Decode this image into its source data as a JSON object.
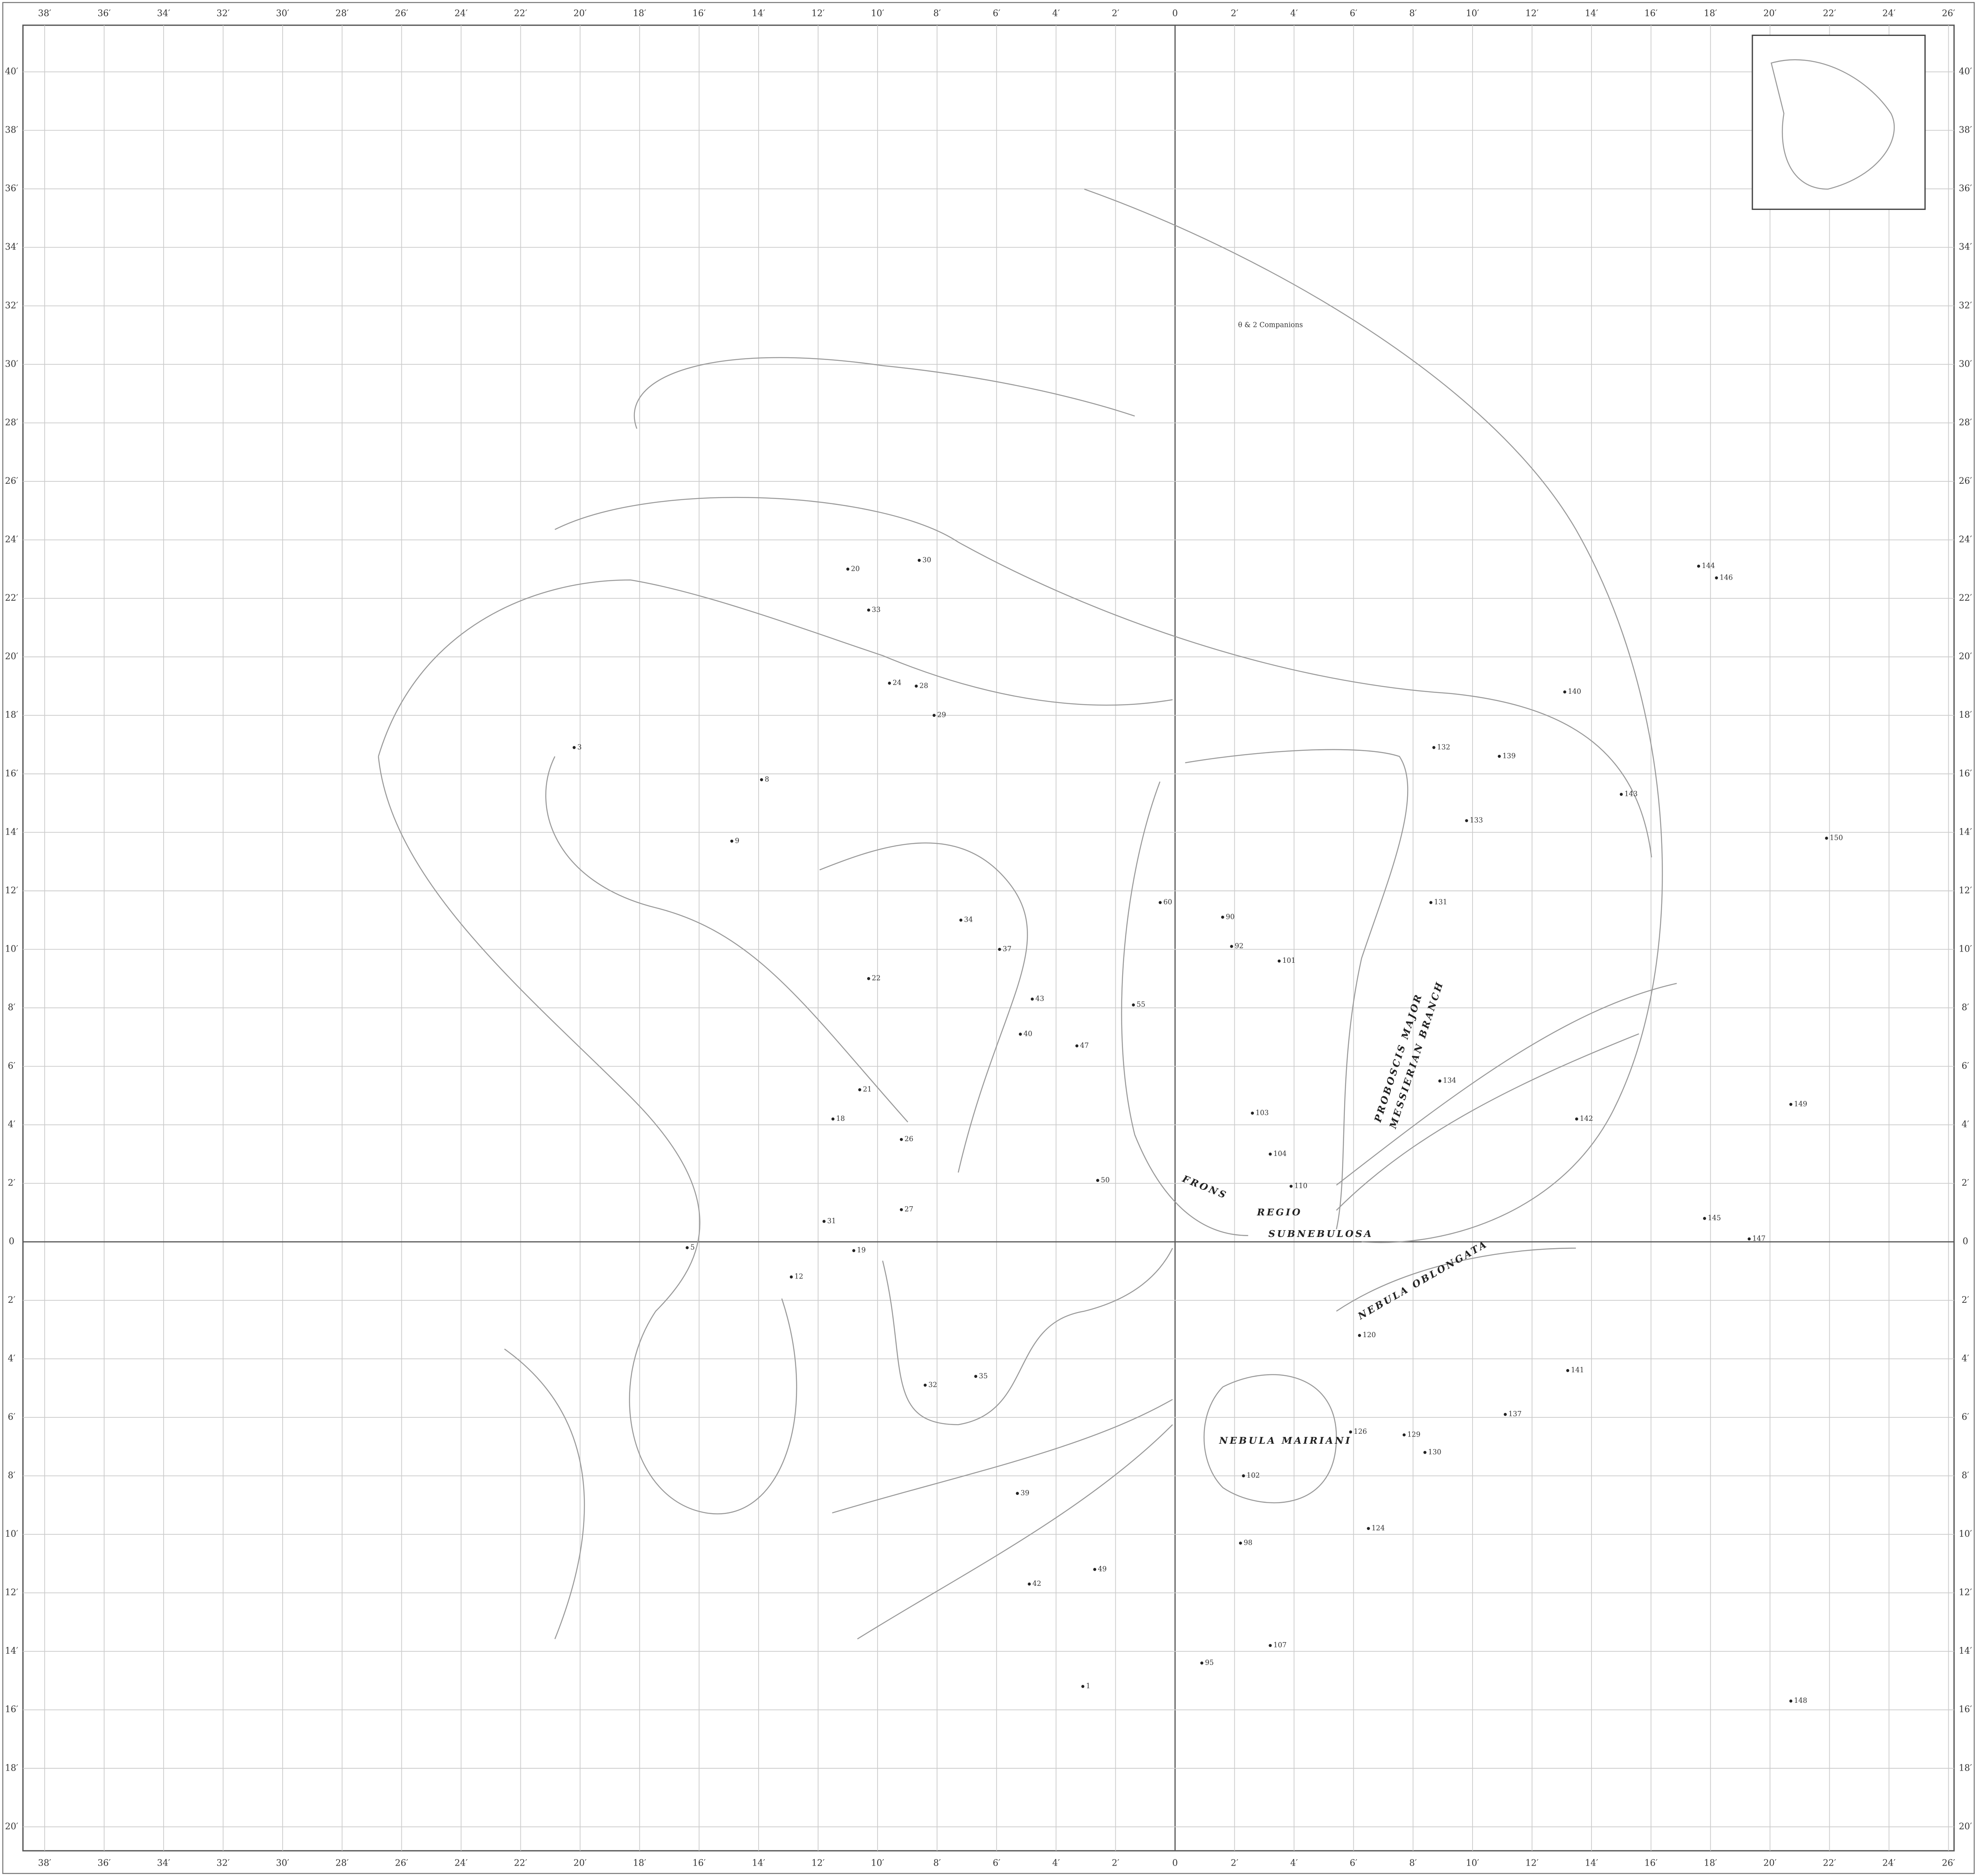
{
  "map": {
    "xticks": [
      {
        "value": -38,
        "label": "38′"
      },
      {
        "value": -36,
        "label": "36′"
      },
      {
        "value": -34,
        "label": "34′"
      },
      {
        "value": -32,
        "label": "32′"
      },
      {
        "value": -30,
        "label": "30′"
      },
      {
        "value": -28,
        "label": "28′"
      },
      {
        "value": -26,
        "label": "26′"
      },
      {
        "value": -24,
        "label": "24′"
      },
      {
        "value": -22,
        "label": "22′"
      },
      {
        "value": -20,
        "label": "20′"
      },
      {
        "value": -18,
        "label": "18′"
      },
      {
        "value": -16,
        "label": "16′"
      },
      {
        "value": -14,
        "label": "14′"
      },
      {
        "value": -12,
        "label": "12′"
      },
      {
        "value": -10,
        "label": "10′"
      },
      {
        "value": -8,
        "label": "8′"
      },
      {
        "value": -6,
        "label": "6′"
      },
      {
        "value": -4,
        "label": "4′"
      },
      {
        "value": -2,
        "label": "2′"
      },
      0,
      {
        "value": 2,
        "label": "2′"
      },
      {
        "value": 4,
        "label": "4′"
      },
      {
        "value": 6,
        "label": "6′"
      },
      {
        "value": 8,
        "label": "8′"
      },
      {
        "value": 10,
        "label": "10′"
      },
      {
        "value": 12,
        "label": "12′"
      },
      {
        "value": 14,
        "label": "14′"
      },
      {
        "value": 16,
        "label": "16′"
      },
      {
        "value": 18,
        "label": "18′"
      },
      {
        "value": 20,
        "label": "20′"
      },
      {
        "value": 22,
        "label": "22′"
      },
      {
        "value": 24,
        "label": "24′"
      },
      {
        "value": 26,
        "label": "26′"
      }
    ],
    "yticks": [
      {
        "value": 40,
        "label": "40′"
      },
      {
        "value": 38,
        "label": "38′"
      },
      {
        "value": 36,
        "label": "36′"
      },
      {
        "value": 34,
        "label": "34′"
      },
      {
        "value": 32,
        "label": "32′"
      },
      {
        "value": 30,
        "label": "30′"
      },
      {
        "value": 28,
        "label": "28′"
      },
      {
        "value": 26,
        "label": "26′"
      },
      {
        "value": 24,
        "label": "24′"
      },
      {
        "value": 22,
        "label": "22′"
      },
      {
        "value": 20,
        "label": "20′"
      },
      {
        "value": 18,
        "label": "18′"
      },
      {
        "value": 16,
        "label": "16′"
      },
      {
        "value": 14,
        "label": "14′"
      },
      {
        "value": 12,
        "label": "12′"
      },
      {
        "value": 10,
        "label": "10′"
      },
      {
        "value": 8,
        "label": "8′"
      },
      {
        "value": 6,
        "label": "6′"
      },
      {
        "value": 4,
        "label": "4′"
      },
      {
        "value": 2,
        "label": "2′"
      },
      0,
      {
        "value": -2,
        "label": "2′"
      },
      {
        "value": -4,
        "label": "4′"
      },
      {
        "value": -6,
        "label": "6′"
      },
      {
        "value": -8,
        "label": "8′"
      },
      {
        "value": -10,
        "label": "10′"
      },
      {
        "value": -12,
        "label": "12′"
      },
      {
        "value": -14,
        "label": "14′"
      },
      {
        "value": -16,
        "label": "16′"
      },
      {
        "value": -18,
        "label": "18′"
      },
      {
        "value": -20,
        "label": "20′"
      }
    ],
    "regions": [
      "FRONS",
      "REGIO",
      "SUBNEBULOSA",
      "PROBOSCIS MAJOR",
      "MESSIERIAN BRANCH",
      "NEBULA OBLONGATA",
      "NEBULA MAIRIANI",
      "θ & 2 Companions"
    ],
    "stars": [
      {
        "label": "20",
        "x": -11.0,
        "y": 23.0
      },
      {
        "label": "30",
        "x": -8.6,
        "y": 23.3
      },
      {
        "label": "33",
        "x": -10.3,
        "y": 21.6
      },
      {
        "label": "24",
        "x": -9.6,
        "y": 19.1
      },
      {
        "label": "28",
        "x": -8.7,
        "y": 19.0
      },
      {
        "label": "29",
        "x": -8.1,
        "y": 18.0
      },
      {
        "label": "3",
        "x": -20.2,
        "y": 16.9
      },
      {
        "label": "8",
        "x": -13.9,
        "y": 15.8
      },
      {
        "label": "9",
        "x": -14.9,
        "y": 13.7
      },
      {
        "label": "34",
        "x": -7.2,
        "y": 11.0
      },
      {
        "label": "37",
        "x": -5.9,
        "y": 10.0
      },
      {
        "label": "22",
        "x": -10.3,
        "y": 9.0
      },
      {
        "label": "43",
        "x": -4.8,
        "y": 8.3
      },
      {
        "label": "40",
        "x": -5.2,
        "y": 7.1
      },
      {
        "label": "47",
        "x": -3.3,
        "y": 6.7
      },
      {
        "label": "21",
        "x": -10.6,
        "y": 5.2
      },
      {
        "label": "18",
        "x": -11.5,
        "y": 4.2
      },
      {
        "label": "26",
        "x": -9.2,
        "y": 3.5
      },
      {
        "label": "27",
        "x": -9.2,
        "y": 1.1
      },
      {
        "label": "31",
        "x": -11.8,
        "y": 0.7
      },
      {
        "label": "5",
        "x": -16.4,
        "y": -0.2
      },
      {
        "label": "19",
        "x": -10.8,
        "y": -0.3
      },
      {
        "label": "12",
        "x": -12.9,
        "y": -1.2
      },
      {
        "label": "32",
        "x": -8.4,
        "y": -4.9
      },
      {
        "label": "35",
        "x": -6.7,
        "y": -4.6
      },
      {
        "label": "39",
        "x": -5.3,
        "y": -8.6
      },
      {
        "label": "42",
        "x": -4.9,
        "y": -11.7
      },
      {
        "label": "49",
        "x": -2.7,
        "y": -11.2
      },
      {
        "label": "1",
        "x": -3.1,
        "y": -15.2
      },
      {
        "label": "50",
        "x": -2.6,
        "y": 2.1
      },
      {
        "label": "55",
        "x": -1.4,
        "y": 8.1
      },
      {
        "label": "60",
        "x": -0.5,
        "y": 11.6
      },
      {
        "label": "90",
        "x": 1.6,
        "y": 11.1
      },
      {
        "label": "92",
        "x": 1.9,
        "y": 10.1
      },
      {
        "label": "101",
        "x": 3.5,
        "y": 9.6
      },
      {
        "label": "103",
        "x": 2.6,
        "y": 4.4
      },
      {
        "label": "104",
        "x": 3.2,
        "y": 3.0
      },
      {
        "label": "110",
        "x": 3.9,
        "y": 1.9
      },
      {
        "label": "120",
        "x": 6.2,
        "y": -3.2
      },
      {
        "label": "124",
        "x": 6.5,
        "y": -9.8
      },
      {
        "label": "126",
        "x": 5.9,
        "y": -6.5
      },
      {
        "label": "129",
        "x": 7.7,
        "y": -6.6
      },
      {
        "label": "130",
        "x": 8.4,
        "y": -7.2
      },
      {
        "label": "132",
        "x": 8.7,
        "y": 16.9
      },
      {
        "label": "133",
        "x": 9.8,
        "y": 14.4
      },
      {
        "label": "131",
        "x": 8.6,
        "y": 11.6
      },
      {
        "label": "134",
        "x": 8.9,
        "y": 5.5
      },
      {
        "label": "140",
        "x": 13.1,
        "y": 18.8
      },
      {
        "label": "143",
        "x": 15.0,
        "y": 15.3
      },
      {
        "label": "144",
        "x": 17.6,
        "y": 23.1
      },
      {
        "label": "146",
        "x": 18.2,
        "y": 22.7
      },
      {
        "label": "149",
        "x": 20.7,
        "y": 4.7
      },
      {
        "label": "150",
        "x": 21.9,
        "y": 13.8
      },
      {
        "label": "145",
        "x": 17.8,
        "y": 0.8
      },
      {
        "label": "147",
        "x": 19.3,
        "y": 0.1
      },
      {
        "label": "141",
        "x": 13.2,
        "y": -4.4
      },
      {
        "label": "137",
        "x": 11.1,
        "y": -5.9
      },
      {
        "label": "148",
        "x": 20.7,
        "y": -15.7
      },
      {
        "label": "139",
        "x": 10.9,
        "y": 16.6
      },
      {
        "label": "142",
        "x": 13.5,
        "y": 4.2
      },
      {
        "label": "95",
        "x": 0.9,
        "y": -14.4
      },
      {
        "label": "98",
        "x": 2.2,
        "y": -10.3
      },
      {
        "label": "107",
        "x": 3.2,
        "y": -13.8
      },
      {
        "label": "102",
        "x": 2.3,
        "y": -8.0
      }
    ]
  }
}
